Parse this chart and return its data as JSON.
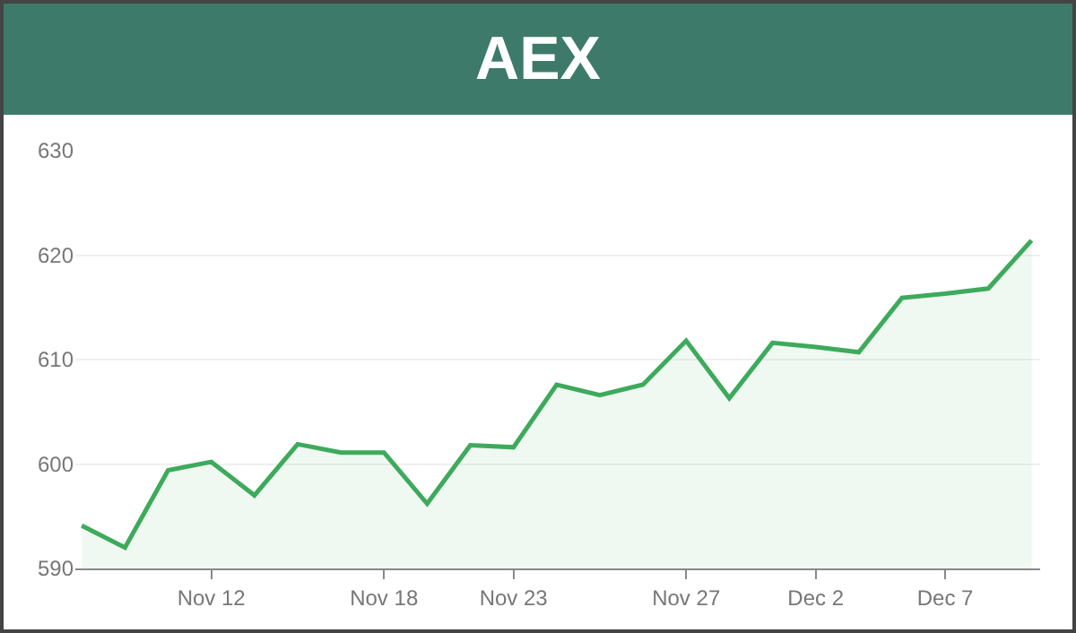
{
  "chart_data": {
    "type": "area",
    "title": "AEX",
    "categories": [
      null,
      null,
      null,
      "Nov 12",
      null,
      null,
      null,
      "Nov 18",
      null,
      null,
      "Nov 23",
      null,
      null,
      null,
      "Nov 27",
      null,
      null,
      "Dec 2",
      null,
      null,
      "Dec 7",
      null,
      null
    ],
    "series": [
      {
        "color": "#3daa5c",
        "values": [
          594.1,
          592.0,
          599.4,
          600.2,
          597.0,
          601.9,
          601.1,
          601.1,
          596.2,
          601.8,
          601.6,
          607.6,
          606.6,
          607.6,
          611.8,
          606.3,
          611.6,
          611.2,
          610.7,
          615.9,
          616.3,
          616.8,
          621.4
        ]
      }
    ],
    "ylim": [
      590,
      630
    ],
    "yticks": [
      590,
      600,
      610,
      620,
      630
    ],
    "grid": "y",
    "marker": "none",
    "line_style": "solid"
  }
}
